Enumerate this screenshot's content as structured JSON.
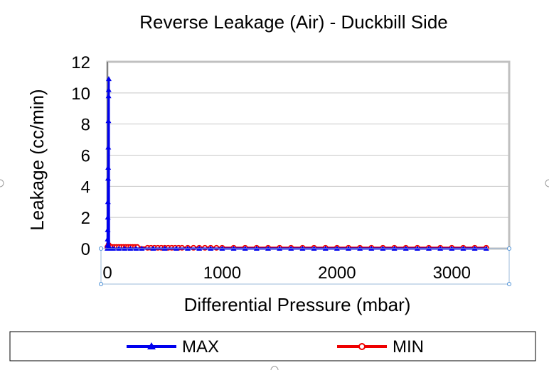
{
  "chart_data": {
    "type": "line",
    "title": "Reverse Leakage (Air) - Duckbill Side",
    "xlabel": "Differential Pressure (mbar)",
    "ylabel": "Leakage (cc/min)",
    "xlim": [
      0,
      3500
    ],
    "ylim": [
      0,
      12
    ],
    "xticks": [
      0,
      1000,
      2000,
      3000
    ],
    "yticks": [
      0,
      2,
      4,
      6,
      8,
      10,
      12
    ],
    "xtick_labels": [
      "0",
      "1000",
      "2000",
      "3000"
    ],
    "ytick_labels": [
      "0",
      "2",
      "4",
      "6",
      "8",
      "10",
      "12"
    ],
    "grid": "horizontal",
    "legend_position": "bottom",
    "series": [
      {
        "name": "MAX",
        "color": "#0000ee",
        "marker": "triangle",
        "x": [
          0,
          1,
          2,
          3,
          4,
          5,
          6,
          7,
          8,
          9,
          10,
          11,
          12,
          14,
          16,
          20,
          25,
          50,
          100,
          150,
          200,
          250,
          300,
          400,
          500,
          600,
          700,
          800,
          900,
          1000,
          1100,
          1200,
          1300,
          1400,
          1500,
          1600,
          1700,
          1800,
          1900,
          2000,
          2100,
          2200,
          2300,
          2400,
          2500,
          2600,
          2700,
          2800,
          2900,
          3000,
          3100,
          3200,
          3300
        ],
        "y": [
          0,
          0.2,
          0.6,
          1.2,
          2.0,
          3.0,
          4.5,
          5.2,
          6.5,
          8.2,
          9.8,
          10.2,
          10.9,
          0.1,
          0.05,
          0,
          0,
          0,
          0,
          0,
          0,
          0,
          0,
          0,
          0,
          0,
          0,
          0,
          0,
          0,
          0,
          0,
          0,
          0,
          0,
          0,
          0,
          0,
          0,
          0,
          0,
          0,
          0,
          0,
          0,
          0,
          0,
          0,
          0,
          0,
          0,
          0,
          0
        ]
      },
      {
        "name": "MIN",
        "color": "#ee0000",
        "marker": "circle",
        "x": [
          0,
          10,
          20,
          40,
          60,
          80,
          100,
          120,
          140,
          160,
          180,
          200,
          220,
          240,
          260,
          350,
          380,
          410,
          440,
          470,
          500,
          530,
          560,
          590,
          620,
          650,
          700,
          750,
          800,
          850,
          900,
          950,
          1000,
          1100,
          1200,
          1300,
          1400,
          1500,
          1600,
          1700,
          1800,
          1900,
          2000,
          2100,
          2200,
          2300,
          2400,
          2500,
          2600,
          2700,
          2800,
          2900,
          3000,
          3100,
          3200,
          3300
        ],
        "y": [
          0.1,
          0.25,
          0.15,
          0.1,
          0.1,
          0.1,
          0.1,
          0.1,
          0.1,
          0.1,
          0.1,
          0.1,
          0.1,
          0.1,
          0.1,
          0.05,
          0.05,
          0.05,
          0.05,
          0.05,
          0.05,
          0.05,
          0.05,
          0.05,
          0.05,
          0.05,
          0.05,
          0.05,
          0.05,
          0.05,
          0.05,
          0.05,
          0.05,
          0.05,
          0.05,
          0.05,
          0.05,
          0.05,
          0.05,
          0.05,
          0.05,
          0.05,
          0.05,
          0.05,
          0.05,
          0.05,
          0.05,
          0.05,
          0.05,
          0.05,
          0.05,
          0.05,
          0.05,
          0.05,
          0.05,
          0.05
        ]
      }
    ]
  }
}
